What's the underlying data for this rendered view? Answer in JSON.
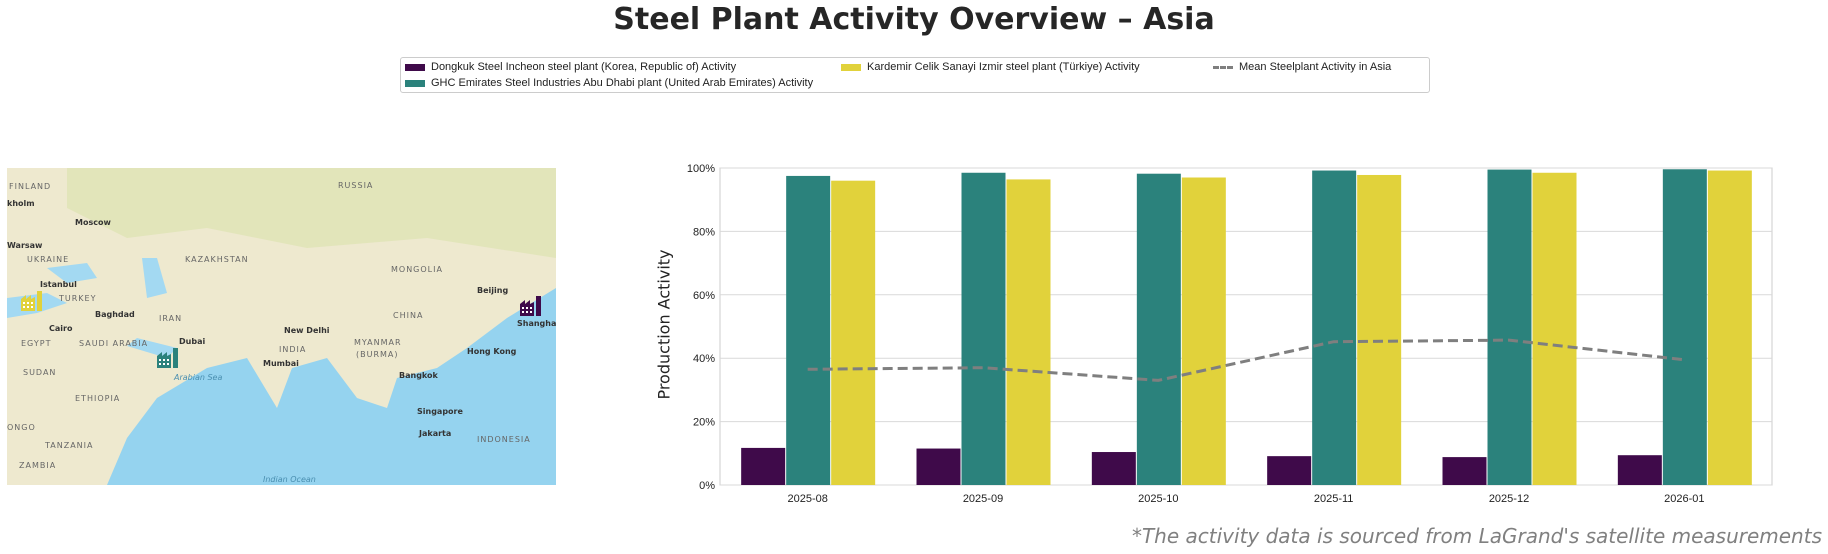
{
  "title": "Steel Plant Activity Overview – Asia",
  "footnote": "*The activity data is sourced from LaGrand's satellite measurements",
  "map": {
    "cities": [
      "kholm",
      "Moscow",
      "Warsaw",
      "Istanbul",
      "Baghdad",
      "Cairo",
      "Dubai",
      "New Delhi",
      "Mumbai",
      "Bangkok",
      "Singapore",
      "Jakarta",
      "Hong Kong",
      "Shanghai",
      "Beijing"
    ],
    "countries": [
      "FINLAND",
      "RUSSIA",
      "UKRAINE",
      "KAZAKHSTAN",
      "MONGOLIA",
      "TURKEY",
      "IRAN",
      "CHINA",
      "EGYPT",
      "SAUDI ARABIA",
      "INDIA",
      "MYANMAR",
      "(BURMA)",
      "SUDAN",
      "ETHIOPIA",
      "TANZANIA",
      "ZAMBIA",
      "INDONESIA",
      "ONGO"
    ],
    "seas": [
      "Arabian Sea",
      "Indian Ocean"
    ],
    "markers": [
      {
        "plant": "Kardemir",
        "color": "#e1d23b",
        "icon": "factory-icon"
      },
      {
        "plant": "GHC Emirates",
        "color": "#2b827c",
        "icon": "factory-icon"
      },
      {
        "plant": "Dongkuk",
        "color": "#3f0a4a",
        "icon": "factory-icon"
      }
    ]
  },
  "chart_data": {
    "type": "bar",
    "categories": [
      "2025-08",
      "2025-09",
      "2025-10",
      "2025-11",
      "2025-12",
      "2026-01"
    ],
    "ylabel": "Production Activity",
    "xlabel": "",
    "ylim": [
      0,
      100
    ],
    "yticks": [
      "0%",
      "20%",
      "40%",
      "60%",
      "80%",
      "100%"
    ],
    "grid": true,
    "legend": "top-center",
    "series": [
      {
        "name": "Dongkuk Steel Incheon steel plant (Korea, Republic of) Activity",
        "color": "#3f0a4a",
        "values": [
          11.7,
          11.5,
          10.4,
          9.1,
          8.8,
          9.4
        ]
      },
      {
        "name": "GHC Emirates Steel Industries Abu Dhabi plant (United Arab Emirates) Activity",
        "color": "#2b827c",
        "values": [
          97.5,
          98.5,
          98.2,
          99.2,
          99.5,
          99.6
        ]
      },
      {
        "name": "Kardemir Celik Sanayi Izmir steel plant (Türkiye) Activity",
        "color": "#e1d23b",
        "values": [
          96.0,
          96.4,
          97.0,
          97.8,
          98.5,
          99.2
        ]
      }
    ],
    "line": {
      "name": "Mean Steelplant Activity in Asia",
      "color": "#7f7f7f",
      "style": "dashed",
      "values": [
        36.5,
        37.0,
        33.0,
        45.2,
        45.7,
        39.5
      ]
    }
  }
}
